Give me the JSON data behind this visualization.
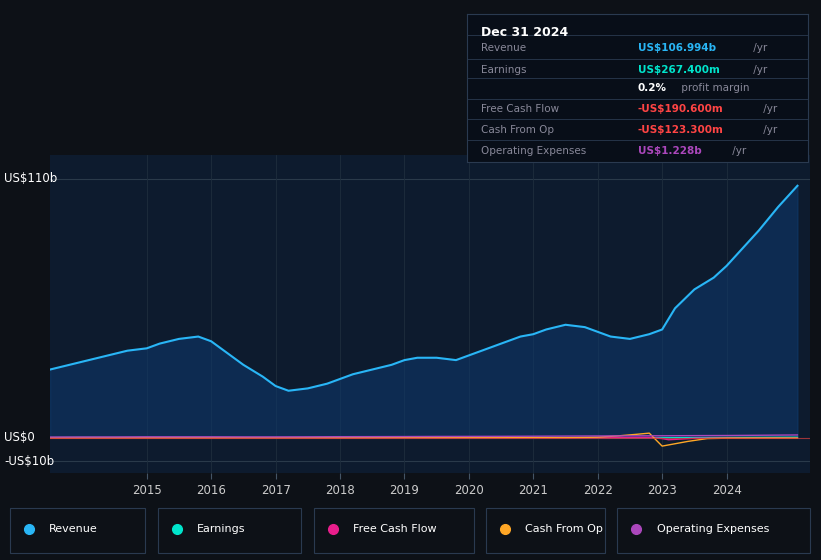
{
  "background_color": "#0d1117",
  "plot_bg_color": "#0d1b2e",
  "ylim": [
    -15000000000.0,
    120000000000.0
  ],
  "xlim": [
    2013.5,
    2025.3
  ],
  "xticks": [
    2015,
    2016,
    2017,
    2018,
    2019,
    2020,
    2021,
    2022,
    2023,
    2024
  ],
  "ytick_positions": [
    -10000000000.0,
    0,
    110000000000.0
  ],
  "ytick_labels": [
    "-US$10b",
    "US$0",
    "US$110b"
  ],
  "legend_items": [
    {
      "label": "Revenue",
      "color": "#29b6f6"
    },
    {
      "label": "Earnings",
      "color": "#00e5cc"
    },
    {
      "label": "Free Cash Flow",
      "color": "#e91e8c"
    },
    {
      "label": "Cash From Op",
      "color": "#ffa726"
    },
    {
      "label": "Operating Expenses",
      "color": "#ab47bc"
    }
  ],
  "revenue_x": [
    2013.5,
    2013.8,
    2014.1,
    2014.4,
    2014.7,
    2015.0,
    2015.2,
    2015.5,
    2015.8,
    2016.0,
    2016.2,
    2016.5,
    2016.8,
    2017.0,
    2017.2,
    2017.5,
    2017.8,
    2018.0,
    2018.2,
    2018.5,
    2018.8,
    2019.0,
    2019.2,
    2019.5,
    2019.8,
    2020.0,
    2020.2,
    2020.5,
    2020.8,
    2021.0,
    2021.2,
    2021.5,
    2021.8,
    2022.0,
    2022.2,
    2022.5,
    2022.8,
    2023.0,
    2023.2,
    2023.5,
    2023.8,
    2024.0,
    2024.2,
    2024.5,
    2024.8,
    2025.1
  ],
  "revenue_y": [
    29000000000.0,
    31000000000.0,
    33000000000.0,
    35000000000.0,
    37000000000.0,
    38000000000.0,
    40000000000.0,
    42000000000.0,
    43000000000.0,
    41000000000.0,
    37000000000.0,
    31000000000.0,
    26000000000.0,
    22000000000.0,
    20000000000.0,
    21000000000.0,
    23000000000.0,
    25000000000.0,
    27000000000.0,
    29000000000.0,
    31000000000.0,
    33000000000.0,
    34000000000.0,
    34000000000.0,
    33000000000.0,
    35000000000.0,
    37000000000.0,
    40000000000.0,
    43000000000.0,
    44000000000.0,
    46000000000.0,
    48000000000.0,
    47000000000.0,
    45000000000.0,
    43000000000.0,
    42000000000.0,
    44000000000.0,
    46000000000.0,
    55000000000.0,
    63000000000.0,
    68000000000.0,
    73000000000.0,
    79000000000.0,
    88000000000.0,
    98000000000.0,
    107000000000.0
  ],
  "earnings_x": [
    2013.5,
    2014.0,
    2014.5,
    2015.0,
    2015.5,
    2016.0,
    2016.5,
    2017.0,
    2017.5,
    2018.0,
    2018.5,
    2019.0,
    2019.5,
    2020.0,
    2020.5,
    2021.0,
    2021.5,
    2022.0,
    2022.5,
    2023.0,
    2023.5,
    2024.0,
    2024.5,
    2025.1
  ],
  "earnings_y": [
    100000000.0,
    150000000.0,
    100000000.0,
    100000000.0,
    50000000.0,
    -50000000.0,
    -50000000.0,
    -100000000.0,
    -20000000.0,
    50000000.0,
    50000000.0,
    100000000.0,
    50000000.0,
    50000000.0,
    100000000.0,
    150000000.0,
    100000000.0,
    50000000.0,
    20000000.0,
    50000000.0,
    100000000.0,
    150000000.0,
    200000000.0,
    267000000.0
  ],
  "fcf_x": [
    2013.5,
    2014.0,
    2014.5,
    2015.0,
    2015.5,
    2016.0,
    2016.5,
    2017.0,
    2017.5,
    2018.0,
    2018.5,
    2019.0,
    2019.5,
    2020.0,
    2020.5,
    2021.0,
    2021.5,
    2022.0,
    2022.5,
    2022.8,
    2023.0,
    2023.1,
    2023.3,
    2023.5,
    2023.8,
    2024.0,
    2024.3,
    2024.6,
    2025.1
  ],
  "fcf_y": [
    -100000000.0,
    -100000000.0,
    -100000000.0,
    -50000000.0,
    -100000000.0,
    -100000000.0,
    -50000000.0,
    -50000000.0,
    -50000000.0,
    -100000000.0,
    -50000000.0,
    50000000.0,
    0.0,
    50000000.0,
    50000000.0,
    50000000.0,
    20000000.0,
    50000000.0,
    100000000.0,
    150000000.0,
    -300000000.0,
    -800000000.0,
    -500000000.0,
    -200000000.0,
    -150000000.0,
    -100000000.0,
    -200000000.0,
    -150000000.0,
    -190000000.0
  ],
  "cfop_x": [
    2013.5,
    2014.0,
    2014.5,
    2015.0,
    2015.5,
    2016.0,
    2016.5,
    2017.0,
    2017.5,
    2018.0,
    2018.5,
    2019.0,
    2019.5,
    2020.0,
    2020.5,
    2021.0,
    2021.5,
    2022.0,
    2022.3,
    2022.6,
    2022.8,
    2023.0,
    2023.2,
    2023.4,
    2023.7,
    2024.0,
    2024.4,
    2024.8,
    2025.1
  ],
  "cfop_y": [
    -50000000.0,
    -50000000.0,
    -50000000.0,
    -50000000.0,
    -50000000.0,
    -50000000.0,
    -20000000.0,
    -20000000.0,
    -20000000.0,
    -50000000.0,
    -20000000.0,
    20000000.0,
    20000000.0,
    50000000.0,
    50000000.0,
    100000000.0,
    50000000.0,
    300000000.0,
    800000000.0,
    1500000000.0,
    2000000000.0,
    -3500000000.0,
    -2500000000.0,
    -1500000000.0,
    -300000000.0,
    -150000000.0,
    -100000000.0,
    -100000000.0,
    -123000000.0
  ],
  "opex_x": [
    2013.5,
    2014.0,
    2014.5,
    2015.0,
    2015.5,
    2016.0,
    2016.5,
    2017.0,
    2017.5,
    2018.0,
    2018.5,
    2019.0,
    2019.5,
    2020.0,
    2020.5,
    2021.0,
    2021.5,
    2022.0,
    2022.5,
    2023.0,
    2023.5,
    2024.0,
    2024.5,
    2025.1
  ],
  "opex_y": [
    350000000.0,
    380000000.0,
    400000000.0,
    450000000.0,
    450000000.0,
    450000000.0,
    420000000.0,
    420000000.0,
    450000000.0,
    500000000.0,
    520000000.0,
    550000000.0,
    600000000.0,
    620000000.0,
    650000000.0,
    700000000.0,
    750000000.0,
    800000000.0,
    850000000.0,
    880000000.0,
    950000000.0,
    1000000000.0,
    1100000000.0,
    1228000000.0
  ],
  "info_box": {
    "title": "Dec 31 2024",
    "rows": [
      {
        "label": "Revenue",
        "value": "US$106.994b",
        "suffix": " /yr",
        "val_color": "#29b6f6"
      },
      {
        "label": "Earnings",
        "value": "US$267.400m",
        "suffix": " /yr",
        "val_color": "#00e5cc"
      },
      {
        "label": "",
        "value": "0.2%",
        "suffix": " profit margin",
        "val_color": "#ffffff"
      },
      {
        "label": "Free Cash Flow",
        "value": "-US$190.600m",
        "suffix": " /yr",
        "val_color": "#ff4444"
      },
      {
        "label": "Cash From Op",
        "value": "-US$123.300m",
        "suffix": " /yr",
        "val_color": "#ff4444"
      },
      {
        "label": "Operating Expenses",
        "value": "US$1.228b",
        "suffix": " /yr",
        "val_color": "#ab47bc"
      }
    ]
  }
}
